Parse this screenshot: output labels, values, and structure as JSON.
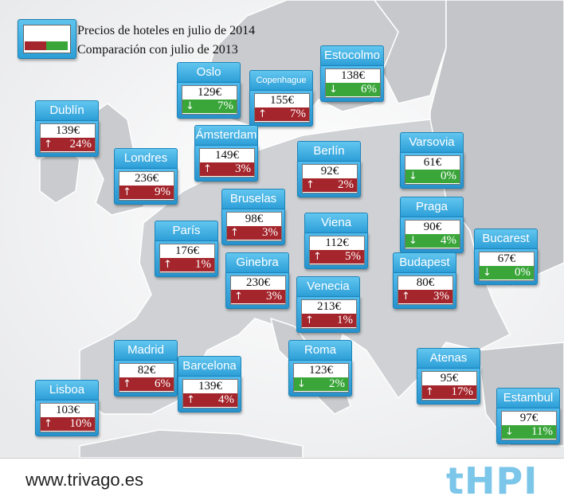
{
  "legend": {
    "line1": "Precios de hoteles en julio de 2014",
    "line2": "Comparación con julio de 2013",
    "colors": {
      "increase": "#a4262c",
      "decrease": "#3aa63a",
      "header": "#2d9fd8"
    }
  },
  "cities": [
    {
      "name": "Dublín",
      "price": "139€",
      "change": "24%",
      "direction": "up"
    },
    {
      "name": "Oslo",
      "price": "129€",
      "change": "7%",
      "direction": "down"
    },
    {
      "name": "Copenhague",
      "price": "155€",
      "change": "7%",
      "direction": "up"
    },
    {
      "name": "Estocolmo",
      "price": "138€",
      "change": "6%",
      "direction": "down"
    },
    {
      "name": "Londres",
      "price": "236€",
      "change": "9%",
      "direction": "up"
    },
    {
      "name": "Ámsterdam",
      "price": "149€",
      "change": "3%",
      "direction": "up"
    },
    {
      "name": "Berlín",
      "price": "92€",
      "change": "2%",
      "direction": "up"
    },
    {
      "name": "Varsovia",
      "price": "61€",
      "change": "0%",
      "direction": "down"
    },
    {
      "name": "Bruselas",
      "price": "98€",
      "change": "3%",
      "direction": "up"
    },
    {
      "name": "París",
      "price": "176€",
      "change": "1%",
      "direction": "up"
    },
    {
      "name": "Viena",
      "price": "112€",
      "change": "5%",
      "direction": "up"
    },
    {
      "name": "Praga",
      "price": "90€",
      "change": "4%",
      "direction": "down"
    },
    {
      "name": "Bucarest",
      "price": "67€",
      "change": "0%",
      "direction": "down"
    },
    {
      "name": "Ginebra",
      "price": "230€",
      "change": "3%",
      "direction": "up"
    },
    {
      "name": "Venecia",
      "price": "213€",
      "change": "1%",
      "direction": "up"
    },
    {
      "name": "Budapest",
      "price": "80€",
      "change": "3%",
      "direction": "up"
    },
    {
      "name": "Madrid",
      "price": "82€",
      "change": "6%",
      "direction": "up"
    },
    {
      "name": "Barcelona",
      "price": "139€",
      "change": "4%",
      "direction": "up"
    },
    {
      "name": "Roma",
      "price": "123€",
      "change": "2%",
      "direction": "down"
    },
    {
      "name": "Atenas",
      "price": "95€",
      "change": "17%",
      "direction": "up"
    },
    {
      "name": "Lisboa",
      "price": "103€",
      "change": "10%",
      "direction": "up"
    },
    {
      "name": "Estambul",
      "price": "97€",
      "change": "11%",
      "direction": "down"
    }
  ],
  "arrows": {
    "up": "↑",
    "down": "↓"
  },
  "footer": {
    "url": "www.trivago.es",
    "logo": "tHPI"
  }
}
